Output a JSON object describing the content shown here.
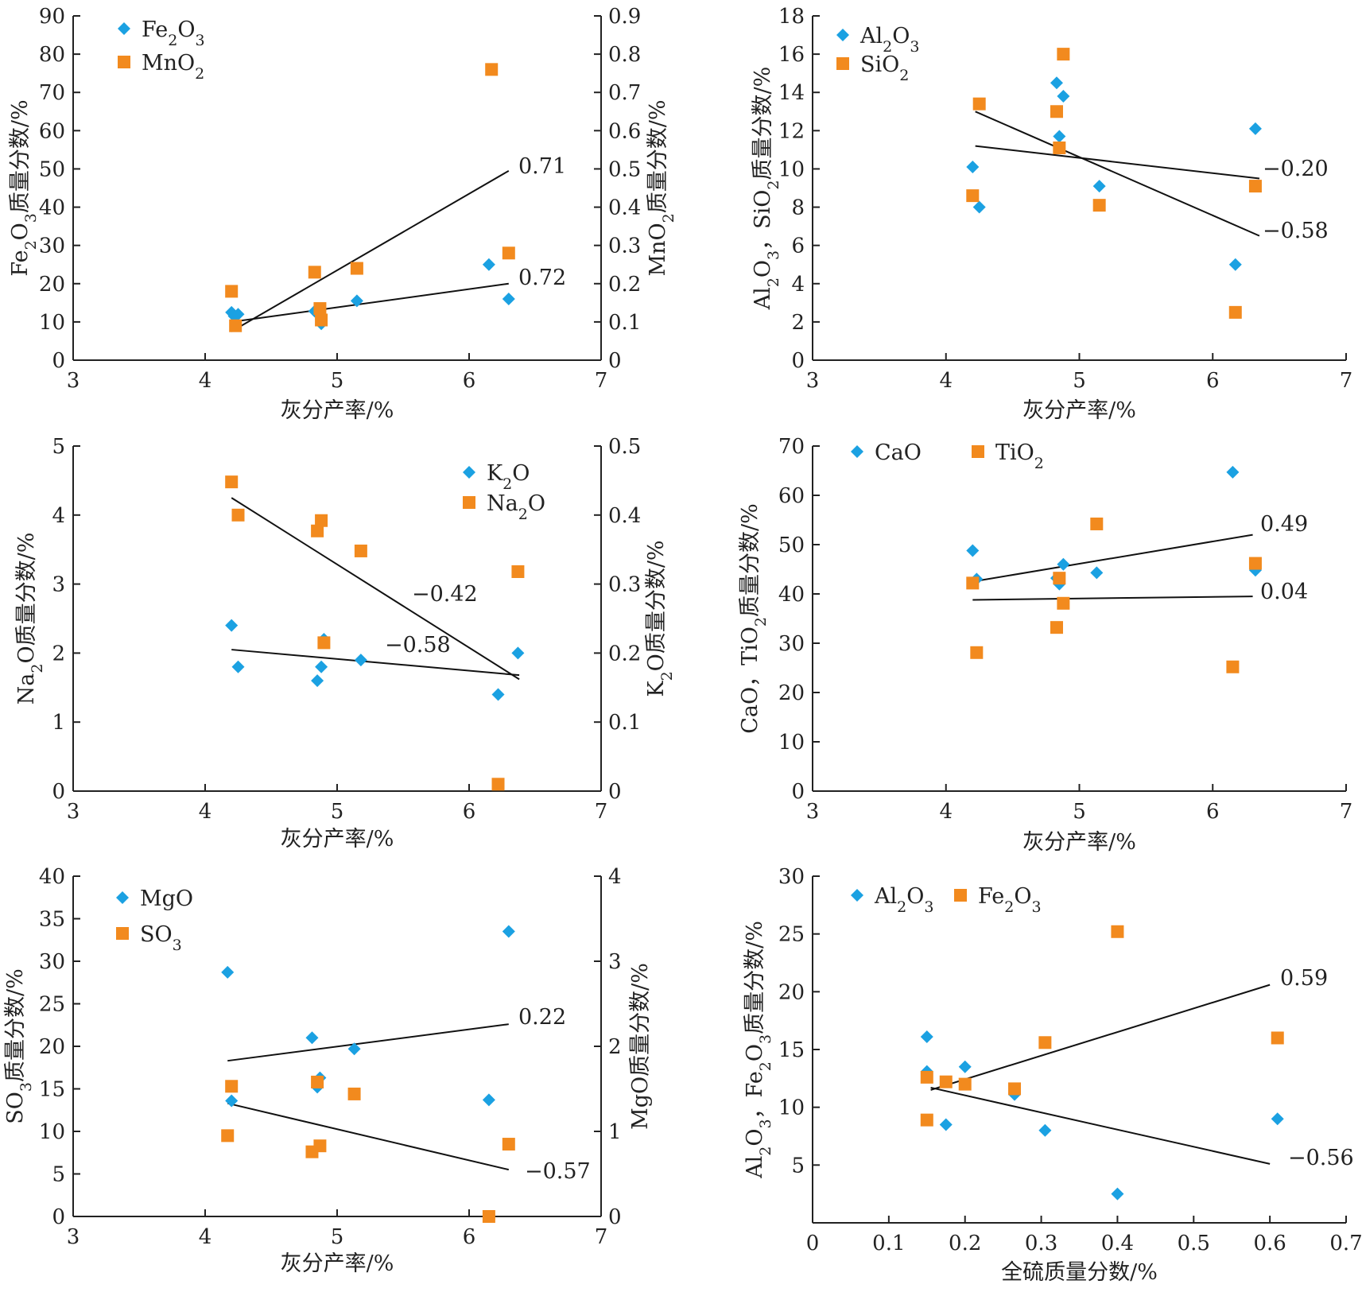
{
  "colors": {
    "blue": "#1BA1E2",
    "orange": "#F28A1E",
    "axis": "#222222"
  },
  "chart_data": [
    {
      "type": "scatter",
      "xlabel": "灰分产率/%",
      "ylabel": [
        {
          "t": "Fe"
        },
        {
          "t": "2",
          "s": "sub"
        },
        {
          "t": "O"
        },
        {
          "t": "3",
          "s": "sub"
        },
        {
          "t": "质量分数/%"
        }
      ],
      "y2label": [
        {
          "t": "MnO"
        },
        {
          "t": "2",
          "s": "sub"
        },
        {
          "t": "质量分数/%"
        }
      ],
      "xlim": [
        3,
        7
      ],
      "xticks": [
        3,
        4,
        5,
        6,
        7
      ],
      "ylim": [
        0,
        90
      ],
      "yticks": [
        0,
        10,
        20,
        30,
        40,
        50,
        60,
        70,
        80,
        90
      ],
      "y2lim": [
        0,
        0.9
      ],
      "y2ticks": [
        "0",
        "0.1",
        "0.2",
        "0.3",
        "0.4",
        "0.5",
        "0.6",
        "0.7",
        "0.8",
        "0.9"
      ],
      "legend_position": "top-left",
      "series": [
        {
          "name": [
            {
              "t": "Fe"
            },
            {
              "t": "2",
              "s": "sub"
            },
            {
              "t": "O"
            },
            {
              "t": "3",
              "s": "sub"
            }
          ],
          "marker": "diamond",
          "color": "blue",
          "axis": "left",
          "points": [
            [
              4.2,
              12.5
            ],
            [
              4.22,
              11.5
            ],
            [
              4.25,
              12
            ],
            [
              4.83,
              12.8
            ],
            [
              4.88,
              9.5
            ],
            [
              5.15,
              15.5
            ],
            [
              6.15,
              25
            ],
            [
              6.3,
              16
            ]
          ]
        },
        {
          "name": [
            {
              "t": "MnO"
            },
            {
              "t": "2",
              "s": "sub"
            }
          ],
          "marker": "square",
          "color": "orange",
          "axis": "right",
          "points": [
            [
              4.2,
              0.18
            ],
            [
              4.23,
              0.09
            ],
            [
              4.83,
              0.23
            ],
            [
              4.87,
              0.135
            ],
            [
              4.88,
              0.105
            ],
            [
              5.15,
              0.24
            ],
            [
              6.17,
              0.76
            ],
            [
              6.3,
              0.28
            ]
          ]
        }
      ],
      "trendlines": [
        {
          "from": [
            4.2,
            7.5
          ],
          "to": [
            6.3,
            49.5
          ],
          "axis": "left",
          "label": "0.71"
        },
        {
          "from": [
            4.2,
            10
          ],
          "to": [
            6.3,
            20
          ],
          "axis": "left",
          "label": "0.72"
        }
      ]
    },
    {
      "type": "scatter",
      "xlabel": "灰分产率/%",
      "ylabel": [
        {
          "t": "Al"
        },
        {
          "t": "2",
          "s": "sub"
        },
        {
          "t": "O"
        },
        {
          "t": "3",
          "s": "sub"
        },
        {
          "t": "，SiO"
        },
        {
          "t": "2",
          "s": "sub"
        },
        {
          "t": "质量分数/%"
        }
      ],
      "xlim": [
        3,
        7
      ],
      "xticks": [
        3,
        4,
        5,
        6,
        7
      ],
      "ylim": [
        0,
        18
      ],
      "yticks": [
        0,
        2,
        4,
        6,
        8,
        10,
        12,
        14,
        16,
        18
      ],
      "legend_position": "top-left",
      "series": [
        {
          "name": [
            {
              "t": "Al"
            },
            {
              "t": "2",
              "s": "sub"
            },
            {
              "t": "O"
            },
            {
              "t": "3",
              "s": "sub"
            }
          ],
          "marker": "diamond",
          "color": "blue",
          "axis": "left",
          "points": [
            [
              4.2,
              10.1
            ],
            [
              4.25,
              8
            ],
            [
              4.83,
              14.5
            ],
            [
              4.85,
              11.7
            ],
            [
              4.88,
              13.8
            ],
            [
              5.15,
              9.1
            ],
            [
              6.17,
              5
            ],
            [
              6.32,
              12.1
            ]
          ]
        },
        {
          "name": [
            {
              "t": "SiO"
            },
            {
              "t": "2",
              "s": "sub"
            }
          ],
          "marker": "square",
          "color": "orange",
          "axis": "left",
          "points": [
            [
              4.2,
              8.6
            ],
            [
              4.25,
              13.4
            ],
            [
              4.83,
              13
            ],
            [
              4.85,
              11.1
            ],
            [
              4.88,
              16
            ],
            [
              5.15,
              8.1
            ],
            [
              6.17,
              2.5
            ],
            [
              6.32,
              9.1
            ]
          ]
        }
      ],
      "trendlines": [
        {
          "from": [
            4.22,
            11.2
          ],
          "to": [
            6.35,
            9.5
          ],
          "axis": "left",
          "label": "−0.20"
        },
        {
          "from": [
            4.22,
            13
          ],
          "to": [
            6.35,
            6.5
          ],
          "axis": "left",
          "label": "−0.58"
        }
      ]
    },
    {
      "type": "scatter",
      "xlabel": "灰分产率/%",
      "ylabel": [
        {
          "t": "Na"
        },
        {
          "t": "2",
          "s": "sub"
        },
        {
          "t": "O质量分数/%"
        }
      ],
      "y2label": [
        {
          "t": "K"
        },
        {
          "t": "2",
          "s": "sub"
        },
        {
          "t": "O质量分数/%"
        }
      ],
      "xlim": [
        3,
        7
      ],
      "xticks": [
        3,
        4,
        5,
        6,
        7
      ],
      "ylim": [
        0,
        5
      ],
      "yticks": [
        0,
        1,
        2,
        3,
        4,
        5
      ],
      "y2lim": [
        0,
        0.5
      ],
      "y2ticks": [
        "0",
        "0.1",
        "0.2",
        "0.3",
        "0.4",
        "0.5"
      ],
      "legend_position": "top-right",
      "series": [
        {
          "name": [
            {
              "t": "K"
            },
            {
              "t": "2",
              "s": "sub"
            },
            {
              "t": "O"
            }
          ],
          "marker": "diamond",
          "color": "blue",
          "axis": "right",
          "points": [
            [
              4.2,
              0.24
            ],
            [
              4.25,
              0.18
            ],
            [
              4.85,
              0.16
            ],
            [
              4.88,
              0.18
            ],
            [
              4.9,
              0.22
            ],
            [
              5.18,
              0.19
            ],
            [
              6.22,
              0.14
            ],
            [
              6.37,
              0.2
            ]
          ]
        },
        {
          "name": [
            {
              "t": "Na"
            },
            {
              "t": "2",
              "s": "sub"
            },
            {
              "t": "O"
            }
          ],
          "marker": "square",
          "color": "orange",
          "axis": "left",
          "points": [
            [
              4.2,
              4.48
            ],
            [
              4.25,
              4
            ],
            [
              4.85,
              3.77
            ],
            [
              4.88,
              3.92
            ],
            [
              4.9,
              2.15
            ],
            [
              5.18,
              3.48
            ],
            [
              6.22,
              0.1
            ],
            [
              6.37,
              3.18
            ]
          ]
        }
      ],
      "trendlines": [
        {
          "from": [
            4.2,
            4.25
          ],
          "to": [
            6.38,
            1.62
          ],
          "axis": "left",
          "label": "−0.42"
        },
        {
          "from": [
            4.2,
            2.05
          ],
          "to": [
            6.38,
            1.68
          ],
          "axis": "left",
          "label": "−0.58"
        }
      ]
    },
    {
      "type": "scatter",
      "xlabel": "灰分产率/%",
      "ylabel": [
        {
          "t": "CaO，TiO"
        },
        {
          "t": "2",
          "s": "sub"
        },
        {
          "t": "质量分数/%"
        }
      ],
      "xlim": [
        3,
        7
      ],
      "xticks": [
        3,
        4,
        5,
        6,
        7
      ],
      "ylim": [
        0,
        70
      ],
      "yticks": [
        0,
        10,
        20,
        30,
        40,
        50,
        60,
        70
      ],
      "legend_position": "top",
      "series": [
        {
          "name": [
            {
              "t": "CaO"
            }
          ],
          "marker": "diamond",
          "color": "blue",
          "axis": "left",
          "points": [
            [
              4.2,
              48.8
            ],
            [
              4.23,
              43
            ],
            [
              4.83,
              43.2
            ],
            [
              4.85,
              42
            ],
            [
              4.88,
              46
            ],
            [
              5.13,
              44.3
            ],
            [
              6.15,
              64.7
            ],
            [
              6.32,
              44.8
            ]
          ]
        },
        {
          "name": [
            {
              "t": "TiO"
            },
            {
              "t": "2",
              "s": "sub"
            }
          ],
          "marker": "square",
          "color": "orange",
          "axis": "left",
          "points": [
            [
              4.2,
              42.2
            ],
            [
              4.23,
              28.1
            ],
            [
              4.83,
              33.2
            ],
            [
              4.85,
              43.2
            ],
            [
              4.88,
              38.1
            ],
            [
              5.13,
              54.2
            ],
            [
              6.15,
              25.2
            ],
            [
              6.32,
              46.2
            ]
          ]
        }
      ],
      "trendlines": [
        {
          "from": [
            4.2,
            42.5
          ],
          "to": [
            6.3,
            52
          ],
          "axis": "left",
          "label": "0.49"
        },
        {
          "from": [
            4.2,
            38.8
          ],
          "to": [
            6.3,
            39.5
          ],
          "axis": "left",
          "label": "0.04"
        }
      ]
    },
    {
      "type": "scatter",
      "xlabel": "灰分产率/%",
      "ylabel": [
        {
          "t": "SO"
        },
        {
          "t": "3",
          "s": "sub"
        },
        {
          "t": "质量分数/%"
        }
      ],
      "y2label": [
        {
          "t": "MgO质量分数/%"
        }
      ],
      "xlim": [
        3,
        7
      ],
      "xticks": [
        3,
        4,
        5,
        6,
        7
      ],
      "ylim": [
        0,
        40
      ],
      "yticks": [
        0,
        5,
        10,
        15,
        20,
        25,
        30,
        35,
        40
      ],
      "y2lim": [
        0,
        4
      ],
      "y2ticks": [
        "0",
        "1",
        "2",
        "3",
        "4"
      ],
      "legend_position": "top-left",
      "series": [
        {
          "name": [
            {
              "t": "MgO"
            }
          ],
          "marker": "diamond",
          "color": "blue",
          "axis": "right",
          "points": [
            [
              4.17,
              2.87
            ],
            [
              4.2,
              1.36
            ],
            [
              4.81,
              2.1
            ],
            [
              4.85,
              1.52
            ],
            [
              4.87,
              1.63
            ],
            [
              5.13,
              1.97
            ],
            [
              6.15,
              1.37
            ],
            [
              6.3,
              3.35
            ]
          ]
        },
        {
          "name": [
            {
              "t": "SO"
            },
            {
              "t": "3",
              "s": "sub"
            }
          ],
          "marker": "square",
          "color": "orange",
          "axis": "left",
          "points": [
            [
              4.17,
              9.5
            ],
            [
              4.2,
              15.3
            ],
            [
              4.81,
              7.6
            ],
            [
              4.85,
              15.8
            ],
            [
              4.87,
              8.3
            ],
            [
              5.13,
              14.4
            ],
            [
              6.15,
              0
            ],
            [
              6.3,
              8.5
            ]
          ]
        }
      ],
      "trendlines": [
        {
          "from": [
            4.17,
            18.3
          ],
          "to": [
            6.3,
            22.6
          ],
          "axis": "left",
          "label": "0.22"
        },
        {
          "from": [
            4.17,
            13.3
          ],
          "to": [
            6.3,
            5.5
          ],
          "axis": "left",
          "label": "−0.57"
        }
      ]
    },
    {
      "type": "scatter",
      "xlabel": "全硫质量分数/%",
      "ylabel": [
        {
          "t": "Al"
        },
        {
          "t": "2",
          "s": "sub"
        },
        {
          "t": "O"
        },
        {
          "t": "3",
          "s": "sub"
        },
        {
          "t": "，Fe"
        },
        {
          "t": "2",
          "s": "sub"
        },
        {
          "t": "O"
        },
        {
          "t": "3",
          "s": "sub"
        },
        {
          "t": "质量分数/%"
        }
      ],
      "xlim": [
        0,
        0.7
      ],
      "xticks": [
        "0",
        "0.1",
        "0.2",
        "0.3",
        "0.4",
        "0.5",
        "0.6",
        "0.7"
      ],
      "ylim": [
        0,
        30
      ],
      "yticks": [
        5,
        10,
        15,
        20,
        25,
        30
      ],
      "legend_position": "top",
      "series": [
        {
          "name": [
            {
              "t": "Al"
            },
            {
              "t": "2",
              "s": "sub"
            },
            {
              "t": "O"
            },
            {
              "t": "3",
              "s": "sub"
            }
          ],
          "marker": "diamond",
          "color": "blue",
          "axis": "left",
          "points": [
            [
              0.15,
              16.1
            ],
            [
              0.15,
              13.1
            ],
            [
              0.175,
              8.5
            ],
            [
              0.2,
              13.5
            ],
            [
              0.265,
              11.1
            ],
            [
              0.305,
              8
            ],
            [
              0.4,
              2.5
            ],
            [
              0.61,
              9
            ]
          ]
        },
        {
          "name": [
            {
              "t": "Fe"
            },
            {
              "t": "2",
              "s": "sub"
            },
            {
              "t": "O"
            },
            {
              "t": "3",
              "s": "sub"
            }
          ],
          "marker": "square",
          "color": "orange",
          "axis": "left",
          "points": [
            [
              0.15,
              12.6
            ],
            [
              0.15,
              8.9
            ],
            [
              0.175,
              12.2
            ],
            [
              0.2,
              12
            ],
            [
              0.265,
              11.6
            ],
            [
              0.305,
              15.6
            ],
            [
              0.4,
              25.2
            ],
            [
              0.61,
              16
            ]
          ]
        }
      ],
      "trendlines": [
        {
          "from": [
            0.155,
            11.5
          ],
          "to": [
            0.6,
            20.6
          ],
          "axis": "left",
          "label": "0.59"
        },
        {
          "from": [
            0.155,
            11.7
          ],
          "to": [
            0.6,
            5.1
          ],
          "axis": "left",
          "label": "−0.56"
        }
      ]
    }
  ]
}
